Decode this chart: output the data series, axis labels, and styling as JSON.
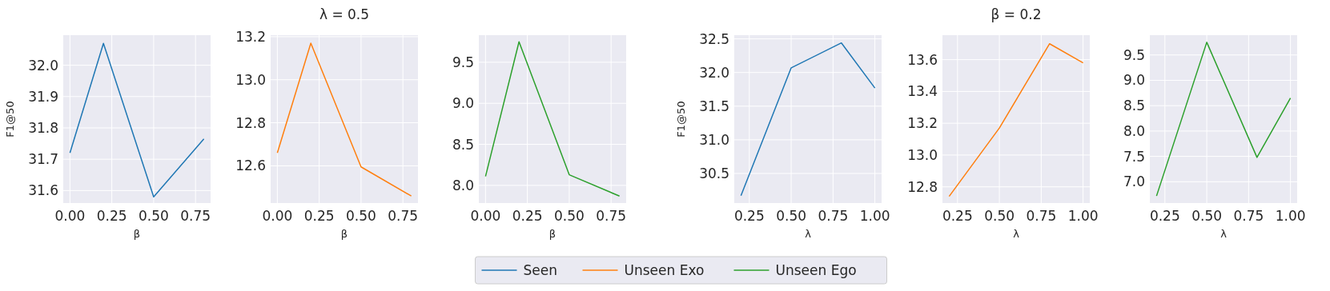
{
  "chart_data": [
    {
      "type": "line",
      "xlabel": "β",
      "ylabel": "F1@50",
      "x": [
        0,
        0.2,
        0.5,
        0.8
      ],
      "xlim": [
        -0.04,
        0.84
      ],
      "xticks": [
        {
          "value": 0,
          "label": "0.00"
        },
        {
          "value": 0.25,
          "label": "0.25"
        },
        {
          "value": 0.5,
          "label": "0.50"
        },
        {
          "value": 0.75,
          "label": "0.75"
        }
      ],
      "ylim": [
        31.56,
        32.096
      ],
      "yticks": [
        {
          "value": 31.6,
          "label": "31.6"
        },
        {
          "value": 31.7,
          "label": "31.7"
        },
        {
          "value": 31.8,
          "label": "31.8"
        },
        {
          "value": 31.9,
          "label": "31.9"
        },
        {
          "value": 32,
          "label": "32.0"
        }
      ],
      "grid": true,
      "legend": "bottom",
      "series": [
        {
          "name": "Seen",
          "color": "#1f77b4",
          "values": [
            31.72,
            32.07,
            31.58,
            31.765
          ]
        }
      ]
    },
    {
      "type": "line",
      "title": "λ = 0.5",
      "xlabel": "β",
      "x": [
        0,
        0.2,
        0.5,
        0.8
      ],
      "xlim": [
        -0.04,
        0.84
      ],
      "xticks": [
        {
          "value": 0,
          "label": "0.00"
        },
        {
          "value": 0.25,
          "label": "0.25"
        },
        {
          "value": 0.5,
          "label": "0.50"
        },
        {
          "value": 0.75,
          "label": "0.75"
        }
      ],
      "ylim": [
        12.427,
        13.207
      ],
      "yticks": [
        {
          "value": 12.6,
          "label": "12.6"
        },
        {
          "value": 12.8,
          "label": "12.8"
        },
        {
          "value": 13,
          "label": "13.0"
        },
        {
          "value": 13.2,
          "label": "13.2"
        }
      ],
      "grid": true,
      "legend": "bottom",
      "series": [
        {
          "name": "Unseen Exo",
          "color": "#ff7f0e",
          "values": [
            12.66,
            13.17,
            12.595,
            12.46
          ]
        }
      ]
    },
    {
      "type": "line",
      "xlabel": "β",
      "x": [
        0,
        0.2,
        0.5,
        0.8
      ],
      "xlim": [
        -0.04,
        0.84
      ],
      "xticks": [
        {
          "value": 0,
          "label": "0.00"
        },
        {
          "value": 0.25,
          "label": "0.25"
        },
        {
          "value": 0.5,
          "label": "0.50"
        },
        {
          "value": 0.75,
          "label": "0.75"
        }
      ],
      "ylim": [
        7.785,
        9.83
      ],
      "yticks": [
        {
          "value": 8,
          "label": "8.0"
        },
        {
          "value": 8.5,
          "label": "8.5"
        },
        {
          "value": 9,
          "label": "9.0"
        },
        {
          "value": 9.5,
          "label": "9.5"
        }
      ],
      "grid": true,
      "legend": "bottom",
      "series": [
        {
          "name": "Unseen Ego",
          "color": "#2ca02c",
          "values": [
            8.11,
            9.75,
            8.13,
            7.87
          ]
        }
      ]
    },
    {
      "type": "line",
      "xlabel": "λ",
      "ylabel": "F1@50",
      "x": [
        0.2,
        0.5,
        0.8,
        1.0
      ],
      "xlim": [
        0.16,
        1.04
      ],
      "xticks": [
        {
          "value": 0.25,
          "label": "0.25"
        },
        {
          "value": 0.5,
          "label": "0.50"
        },
        {
          "value": 0.75,
          "label": "0.75"
        },
        {
          "value": 1,
          "label": "1.00"
        }
      ],
      "ylim": [
        30.06,
        32.555
      ],
      "yticks": [
        {
          "value": 30.5,
          "label": "30.5"
        },
        {
          "value": 31,
          "label": "31.0"
        },
        {
          "value": 31.5,
          "label": "31.5"
        },
        {
          "value": 32,
          "label": "32.0"
        },
        {
          "value": 32.5,
          "label": "32.5"
        }
      ],
      "grid": true,
      "series": [
        {
          "color": "#1f77b4",
          "values": [
            30.17,
            32.07,
            32.44,
            31.77
          ]
        }
      ]
    },
    {
      "type": "line",
      "title": "β = 0.2",
      "xlabel": "λ",
      "x": [
        0.2,
        0.5,
        0.8,
        1.0
      ],
      "xlim": [
        0.16,
        1.04
      ],
      "xticks": [
        {
          "value": 0.25,
          "label": "0.25"
        },
        {
          "value": 0.5,
          "label": "0.50"
        },
        {
          "value": 0.75,
          "label": "0.75"
        },
        {
          "value": 1,
          "label": "1.00"
        }
      ],
      "ylim": [
        12.698,
        13.754
      ],
      "yticks": [
        {
          "value": 12.8,
          "label": "12.8"
        },
        {
          "value": 13,
          "label": "13.0"
        },
        {
          "value": 13.2,
          "label": "13.2"
        },
        {
          "value": 13.4,
          "label": "13.4"
        },
        {
          "value": 13.6,
          "label": "13.6"
        }
      ],
      "grid": true,
      "series": [
        {
          "color": "#ff7f0e",
          "values": [
            12.74,
            13.17,
            13.7,
            13.58
          ]
        }
      ]
    },
    {
      "type": "line",
      "xlabel": "λ",
      "x": [
        0.2,
        0.5,
        0.8,
        1.0
      ],
      "xlim": [
        0.16,
        1.04
      ],
      "xticks": [
        {
          "value": 0.25,
          "label": "0.25"
        },
        {
          "value": 0.5,
          "label": "0.50"
        },
        {
          "value": 0.75,
          "label": "0.75"
        },
        {
          "value": 1,
          "label": "1.00"
        }
      ],
      "ylim": [
        6.58,
        9.89
      ],
      "yticks": [
        {
          "value": 7,
          "label": "7.0"
        },
        {
          "value": 7.5,
          "label": "7.5"
        },
        {
          "value": 8,
          "label": "8.0"
        },
        {
          "value": 8.5,
          "label": "8.5"
        },
        {
          "value": 9,
          "label": "9.0"
        },
        {
          "value": 9.5,
          "label": "9.5"
        }
      ],
      "grid": true,
      "series": [
        {
          "color": "#2ca02c",
          "values": [
            6.72,
            9.75,
            7.48,
            8.65
          ]
        }
      ]
    }
  ]
}
